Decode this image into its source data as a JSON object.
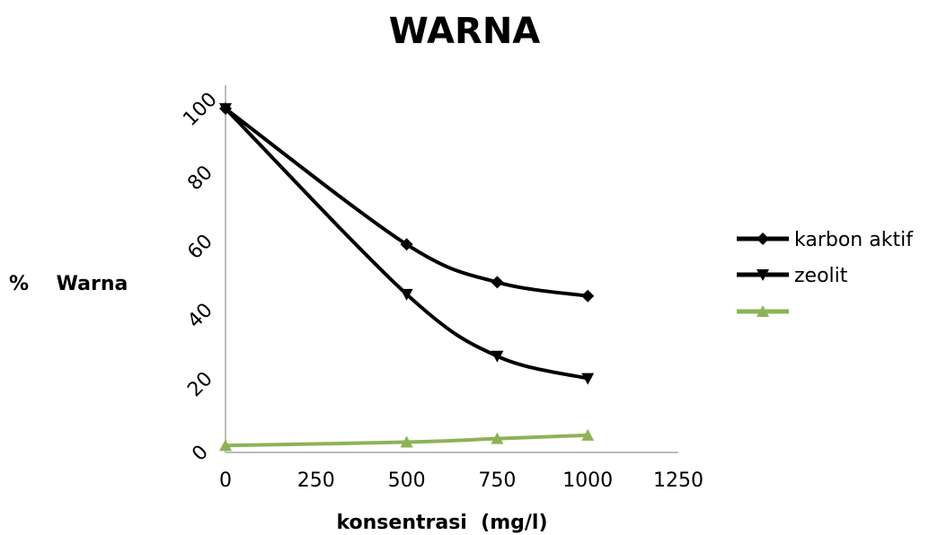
{
  "chart_data": {
    "type": "line",
    "title": "WARNA",
    "xlabel": "konsentrasi  (mg/l)",
    "ylabel": "%    Warna",
    "xlim": [
      0,
      1250
    ],
    "ylim": [
      0,
      100
    ],
    "x_ticks": [
      "0",
      "250",
      "500",
      "750",
      "1000",
      "1250"
    ],
    "y_ticks": [
      "0",
      "20",
      "40",
      "60",
      "80",
      "100"
    ],
    "x": [
      0,
      500,
      750,
      1000
    ],
    "series": [
      {
        "name": "karbon aktif",
        "values": [
          100,
          60.5,
          49.5,
          45.5
        ],
        "color": "#000000",
        "marker": "diamond"
      },
      {
        "name": "zeolit",
        "values": [
          100,
          46,
          28,
          21.5
        ],
        "color": "#000000",
        "marker": "triangle-down"
      },
      {
        "name": "",
        "values": [
          2,
          3,
          4,
          5
        ],
        "color": "#8db356",
        "marker": "triangle-up"
      }
    ],
    "legend_position": "right",
    "grid": false
  }
}
